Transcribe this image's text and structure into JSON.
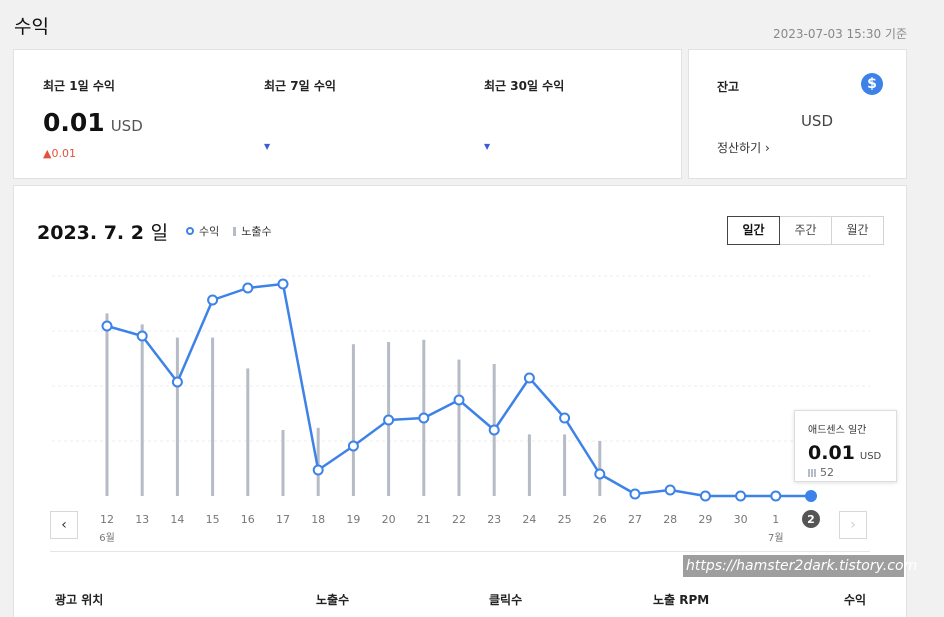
{
  "header": {
    "title": "수익",
    "timestamp": "2023-07-03 15:30 기준"
  },
  "summary": {
    "day": {
      "label": "최근 1일 수익",
      "value": "0.01",
      "unit": "USD",
      "change": "0.01"
    },
    "week": {
      "label": "최근 7일 수익"
    },
    "month": {
      "label": "최근 30일 수익"
    }
  },
  "balance": {
    "label": "잔고",
    "unit": "USD",
    "settle_label": "정산하기",
    "icon": "dollar-icon"
  },
  "chart_section": {
    "date": "2023. 7. 2",
    "date_unit": "일",
    "legend_revenue": "수익",
    "legend_impressions": "노출수",
    "periods": [
      "일간",
      "주간",
      "월간"
    ],
    "active_period": "일간"
  },
  "tooltip": {
    "title": "애드센스 일간",
    "value": "0.01",
    "unit": "USD",
    "impressions": "52"
  },
  "chart_data": {
    "type": "line",
    "categories": [
      "12",
      "13",
      "14",
      "15",
      "16",
      "17",
      "18",
      "19",
      "20",
      "21",
      "22",
      "23",
      "24",
      "25",
      "26",
      "27",
      "28",
      "29",
      "30",
      "1",
      "2"
    ],
    "month_labels": {
      "12": "6월",
      "1": "7월"
    },
    "series": [
      {
        "name": "수익",
        "kind": "line",
        "color": "#3d82e8",
        "values": [
          0.85,
          0.8,
          0.57,
          0.98,
          1.04,
          1.06,
          0.13,
          0.25,
          0.38,
          0.39,
          0.48,
          0.33,
          0.59,
          0.39,
          0.11,
          0.01,
          0.03,
          0.0,
          0.0,
          0.0,
          0.0
        ]
      },
      {
        "name": "노출수",
        "kind": "bar",
        "color": "#b6bcc5",
        "values": [
          0.83,
          0.78,
          0.72,
          0.72,
          0.58,
          0.3,
          0.31,
          0.69,
          0.7,
          0.71,
          0.62,
          0.6,
          0.28,
          0.28,
          0.25,
          0,
          0,
          0,
          0,
          0,
          0
        ]
      }
    ],
    "highlight_category": "2",
    "grid": true
  },
  "table": {
    "headers": [
      "광고 위치",
      "노출수",
      "클릭수",
      "노출 RPM",
      "수익"
    ]
  },
  "watermark": "https://hamster2dark.tistory.com",
  "nav": {
    "prev": "‹",
    "next": "›"
  }
}
